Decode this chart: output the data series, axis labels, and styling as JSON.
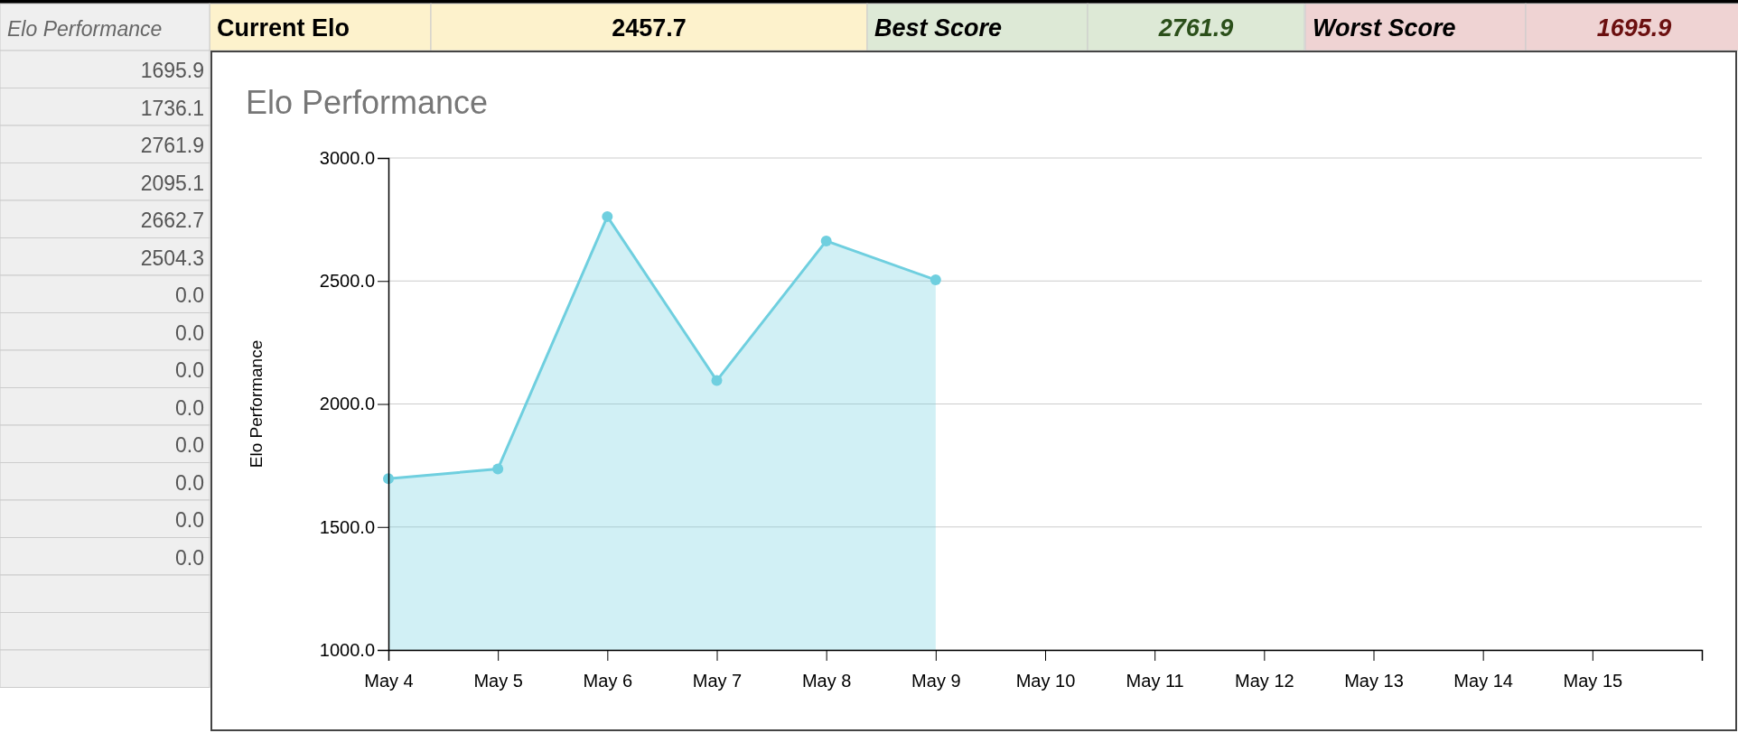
{
  "chart_data": {
    "type": "area",
    "title": "Elo Performance",
    "ylabel": "Elo Performance",
    "categories": [
      "May 4",
      "May 5",
      "May 6",
      "May 7",
      "May 8",
      "May 9",
      "May 10",
      "May 11",
      "May 12",
      "May 13",
      "May 14",
      "May 15",
      null
    ],
    "series": [
      {
        "color": "#6fcfdf",
        "values": [
          1695.9,
          1736.1,
          2761.9,
          2095.1,
          2662.7,
          2504.3,
          null,
          null,
          null,
          null,
          null,
          null,
          null
        ]
      }
    ],
    "ylim": [
      1000,
      3000
    ],
    "yticks": [
      {
        "value": 1000,
        "label": "1000.0"
      },
      {
        "value": 1500,
        "label": "1500.0"
      },
      {
        "value": 2000,
        "label": "2000.0"
      },
      {
        "value": 2500,
        "label": "2500.0"
      },
      {
        "value": 3000,
        "label": "3000.0"
      }
    ],
    "grid": "y",
    "marker": "circle",
    "line_style": "solid",
    "annotations": [
      "Current Elo",
      "2457.7",
      "Best Score",
      "2761.9",
      "Worst Score",
      "1695.9",
      "Elo Performance",
      "1695.9",
      "1736.1",
      "2761.9",
      "2095.1",
      "2662.7",
      "2504.3",
      "0.0",
      "0.0",
      "0.0",
      "0.0",
      "0.0",
      "0.0",
      "0.0",
      "0.0"
    ]
  }
}
